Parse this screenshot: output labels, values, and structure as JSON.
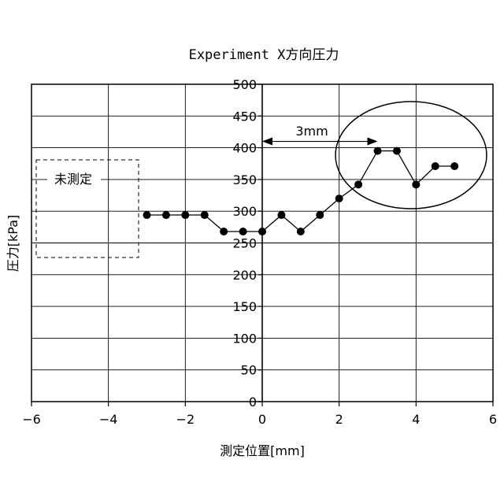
{
  "chart_data": {
    "type": "line",
    "title": "Experiment X方向圧力",
    "xlabel": "測定位置[mm]",
    "ylabel": "圧力[kPa]",
    "xlim": [
      -6,
      6
    ],
    "ylim": [
      0,
      500
    ],
    "xticks": [
      "−6",
      "−4",
      "−2",
      "0",
      "2",
      "4",
      "6"
    ],
    "yticks": [
      "0",
      "50",
      "100",
      "150",
      "200",
      "250",
      "300",
      "350",
      "400",
      "450",
      "500"
    ],
    "grid": true,
    "series": [
      {
        "x": [
          -3,
          -2.5,
          -2,
          -1.5,
          -1,
          -0.5,
          0,
          0.5,
          1,
          1.5,
          2,
          2.5,
          3,
          3.5,
          4,
          4.5,
          5
        ],
        "y": [
          294,
          294,
          294,
          294,
          268,
          268,
          268,
          294,
          268,
          294,
          320,
          342,
          395,
          395,
          342,
          371,
          371
        ]
      }
    ],
    "annotations": {
      "unmeasured_label": "未測定",
      "span_label": "3mm"
    }
  }
}
